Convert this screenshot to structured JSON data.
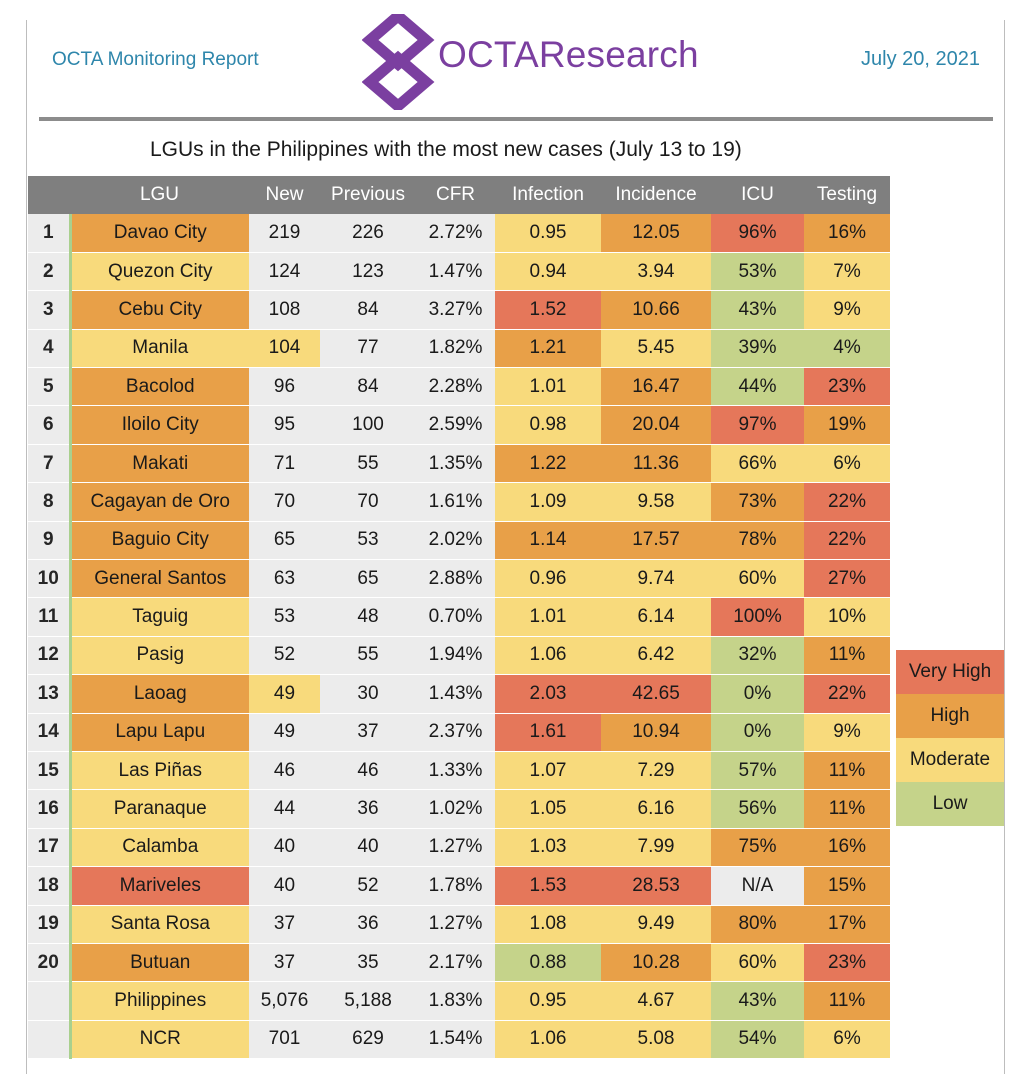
{
  "header": {
    "report_name": "OCTA Monitoring Report",
    "logo_text": "OCTAResearch",
    "date": "July 20, 2021"
  },
  "title": "LGUs in the Philippines with the most new cases (July 13 to 19)",
  "columns": [
    "LGU",
    "New",
    "Previous",
    "CFR",
    "Infection",
    "Incidence",
    "ICU",
    "Testing"
  ],
  "colors": {
    "very_high": "#e5775a",
    "high": "#e8a048",
    "moderate": "#f8da7c",
    "low": "#c5d38a",
    "none": "#ececec",
    "header": "#7f7f7f",
    "brand_purple": "#7b3fa0",
    "header_blue": "#2e86ab"
  },
  "rows": [
    {
      "rank": "1",
      "lgu": "Davao City",
      "new": "219",
      "previous": "226",
      "cfr": "2.72%",
      "infection": "0.95",
      "incidence": "12.05",
      "icu": "96%",
      "testing": "16%",
      "lvl": {
        "lgu": "h",
        "new": "n",
        "infection": "m",
        "incidence": "h",
        "icu": "vh",
        "testing": "h"
      }
    },
    {
      "rank": "2",
      "lgu": "Quezon City",
      "new": "124",
      "previous": "123",
      "cfr": "1.47%",
      "infection": "0.94",
      "incidence": "3.94",
      "icu": "53%",
      "testing": "7%",
      "lvl": {
        "lgu": "m",
        "new": "n",
        "infection": "m",
        "incidence": "m",
        "icu": "l",
        "testing": "m"
      }
    },
    {
      "rank": "3",
      "lgu": "Cebu City",
      "new": "108",
      "previous": "84",
      "cfr": "3.27%",
      "infection": "1.52",
      "incidence": "10.66",
      "icu": "43%",
      "testing": "9%",
      "lvl": {
        "lgu": "h",
        "new": "n",
        "infection": "vh",
        "incidence": "h",
        "icu": "l",
        "testing": "m"
      }
    },
    {
      "rank": "4",
      "lgu": "Manila",
      "new": "104",
      "previous": "77",
      "cfr": "1.82%",
      "infection": "1.21",
      "incidence": "5.45",
      "icu": "39%",
      "testing": "4%",
      "lvl": {
        "lgu": "m",
        "new": "m",
        "infection": "h",
        "incidence": "m",
        "icu": "l",
        "testing": "l"
      }
    },
    {
      "rank": "5",
      "lgu": "Bacolod",
      "new": "96",
      "previous": "84",
      "cfr": "2.28%",
      "infection": "1.01",
      "incidence": "16.47",
      "icu": "44%",
      "testing": "23%",
      "lvl": {
        "lgu": "h",
        "new": "n",
        "infection": "m",
        "incidence": "h",
        "icu": "l",
        "testing": "vh"
      }
    },
    {
      "rank": "6",
      "lgu": "Iloilo City",
      "new": "95",
      "previous": "100",
      "cfr": "2.59%",
      "infection": "0.98",
      "incidence": "20.04",
      "icu": "97%",
      "testing": "19%",
      "lvl": {
        "lgu": "h",
        "new": "n",
        "infection": "m",
        "incidence": "h",
        "icu": "vh",
        "testing": "h"
      }
    },
    {
      "rank": "7",
      "lgu": "Makati",
      "new": "71",
      "previous": "55",
      "cfr": "1.35%",
      "infection": "1.22",
      "incidence": "11.36",
      "icu": "66%",
      "testing": "6%",
      "lvl": {
        "lgu": "h",
        "new": "n",
        "infection": "h",
        "incidence": "h",
        "icu": "m",
        "testing": "m"
      }
    },
    {
      "rank": "8",
      "lgu": "Cagayan de Oro",
      "new": "70",
      "previous": "70",
      "cfr": "1.61%",
      "infection": "1.09",
      "incidence": "9.58",
      "icu": "73%",
      "testing": "22%",
      "lvl": {
        "lgu": "h",
        "new": "n",
        "infection": "m",
        "incidence": "m",
        "icu": "h",
        "testing": "vh"
      }
    },
    {
      "rank": "9",
      "lgu": "Baguio City",
      "new": "65",
      "previous": "53",
      "cfr": "2.02%",
      "infection": "1.14",
      "incidence": "17.57",
      "icu": "78%",
      "testing": "22%",
      "lvl": {
        "lgu": "h",
        "new": "n",
        "infection": "h",
        "incidence": "h",
        "icu": "h",
        "testing": "vh"
      }
    },
    {
      "rank": "10",
      "lgu": "General Santos",
      "new": "63",
      "previous": "65",
      "cfr": "2.88%",
      "infection": "0.96",
      "incidence": "9.74",
      "icu": "60%",
      "testing": "27%",
      "lvl": {
        "lgu": "h",
        "new": "n",
        "infection": "m",
        "incidence": "m",
        "icu": "m",
        "testing": "vh"
      }
    },
    {
      "rank": "11",
      "lgu": "Taguig",
      "new": "53",
      "previous": "48",
      "cfr": "0.70%",
      "infection": "1.01",
      "incidence": "6.14",
      "icu": "100%",
      "testing": "10%",
      "lvl": {
        "lgu": "m",
        "new": "n",
        "infection": "m",
        "incidence": "m",
        "icu": "vh",
        "testing": "m"
      }
    },
    {
      "rank": "12",
      "lgu": "Pasig",
      "new": "52",
      "previous": "55",
      "cfr": "1.94%",
      "infection": "1.06",
      "incidence": "6.42",
      "icu": "32%",
      "testing": "11%",
      "lvl": {
        "lgu": "m",
        "new": "n",
        "infection": "m",
        "incidence": "m",
        "icu": "l",
        "testing": "h"
      }
    },
    {
      "rank": "13",
      "lgu": "Laoag",
      "new": "49",
      "previous": "30",
      "cfr": "1.43%",
      "infection": "2.03",
      "incidence": "42.65",
      "icu": "0%",
      "testing": "22%",
      "lvl": {
        "lgu": "h",
        "new": "m",
        "infection": "vh",
        "incidence": "vh",
        "icu": "l",
        "testing": "vh"
      }
    },
    {
      "rank": "14",
      "lgu": "Lapu Lapu",
      "new": "49",
      "previous": "37",
      "cfr": "2.37%",
      "infection": "1.61",
      "incidence": "10.94",
      "icu": "0%",
      "testing": "9%",
      "lvl": {
        "lgu": "h",
        "new": "n",
        "infection": "vh",
        "incidence": "h",
        "icu": "l",
        "testing": "m"
      }
    },
    {
      "rank": "15",
      "lgu": "Las Piñas",
      "new": "46",
      "previous": "46",
      "cfr": "1.33%",
      "infection": "1.07",
      "incidence": "7.29",
      "icu": "57%",
      "testing": "11%",
      "lvl": {
        "lgu": "m",
        "new": "n",
        "infection": "m",
        "incidence": "m",
        "icu": "l",
        "testing": "h"
      }
    },
    {
      "rank": "16",
      "lgu": "Paranaque",
      "new": "44",
      "previous": "36",
      "cfr": "1.02%",
      "infection": "1.05",
      "incidence": "6.16",
      "icu": "56%",
      "testing": "11%",
      "lvl": {
        "lgu": "m",
        "new": "n",
        "infection": "m",
        "incidence": "m",
        "icu": "l",
        "testing": "h"
      }
    },
    {
      "rank": "17",
      "lgu": "Calamba",
      "new": "40",
      "previous": "40",
      "cfr": "1.27%",
      "infection": "1.03",
      "incidence": "7.99",
      "icu": "75%",
      "testing": "16%",
      "lvl": {
        "lgu": "m",
        "new": "n",
        "infection": "m",
        "incidence": "m",
        "icu": "h",
        "testing": "h"
      }
    },
    {
      "rank": "18",
      "lgu": "Mariveles",
      "new": "40",
      "previous": "52",
      "cfr": "1.78%",
      "infection": "1.53",
      "incidence": "28.53",
      "icu": "N/A",
      "testing": "15%",
      "lvl": {
        "lgu": "vh",
        "new": "n",
        "infection": "vh",
        "incidence": "vh",
        "icu": "n",
        "testing": "h"
      }
    },
    {
      "rank": "19",
      "lgu": "Santa Rosa",
      "new": "37",
      "previous": "36",
      "cfr": "1.27%",
      "infection": "1.08",
      "incidence": "9.49",
      "icu": "80%",
      "testing": "17%",
      "lvl": {
        "lgu": "m",
        "new": "n",
        "infection": "m",
        "incidence": "m",
        "icu": "h",
        "testing": "h"
      }
    },
    {
      "rank": "20",
      "lgu": "Butuan",
      "new": "37",
      "previous": "35",
      "cfr": "2.17%",
      "infection": "0.88",
      "incidence": "10.28",
      "icu": "60%",
      "testing": "23%",
      "lvl": {
        "lgu": "h",
        "new": "n",
        "infection": "l",
        "incidence": "h",
        "icu": "m",
        "testing": "vh"
      }
    },
    {
      "rank": "",
      "lgu": "Philippines",
      "new": "5,076",
      "previous": "5,188",
      "cfr": "1.83%",
      "infection": "0.95",
      "incidence": "4.67",
      "icu": "43%",
      "testing": "11%",
      "lvl": {
        "lgu": "m",
        "new": "n",
        "infection": "m",
        "incidence": "m",
        "icu": "l",
        "testing": "h"
      }
    },
    {
      "rank": "",
      "lgu": "NCR",
      "new": "701",
      "previous": "629",
      "cfr": "1.54%",
      "infection": "1.06",
      "incidence": "5.08",
      "icu": "54%",
      "testing": "6%",
      "lvl": {
        "lgu": "m",
        "new": "n",
        "infection": "m",
        "incidence": "m",
        "icu": "l",
        "testing": "m"
      }
    }
  ],
  "legend": [
    {
      "label": "Very High",
      "level": "vh"
    },
    {
      "label": "High",
      "level": "h"
    },
    {
      "label": "Moderate",
      "level": "m"
    },
    {
      "label": "Low",
      "level": "l"
    }
  ]
}
